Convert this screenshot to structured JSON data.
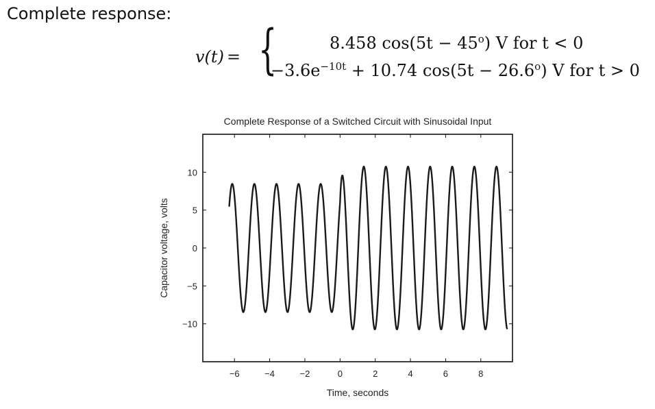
{
  "heading": "Complete response:",
  "equation": {
    "lhs": "v(t)",
    "equals": "=",
    "case1": {
      "expr": "8.458 cos(5t − 45",
      "deg": "o",
      "tail": ") V for t < 0"
    },
    "case2": {
      "coef": "−3.6e",
      "exp": "−10t",
      "expr": " + 10.74 cos(5t − 26.6",
      "deg": "o",
      "tail": ") V for t > 0"
    }
  },
  "chart_data": {
    "type": "line",
    "title": "Complete Response of a Switched Circuit with Sinusoidal Input",
    "xlabel": "Time, seconds",
    "ylabel": "Capacitor voltage, volts",
    "xlim": [
      -7.8,
      9.8
    ],
    "ylim": [
      -15,
      15
    ],
    "xticks": [
      -6,
      -4,
      -2,
      0,
      2,
      4,
      6,
      8
    ],
    "xtick_labels": [
      "−6",
      "−4",
      "−2",
      "0",
      "2",
      "4",
      "6",
      "8"
    ],
    "yticks": [
      -10,
      -5,
      0,
      5,
      10
    ],
    "ytick_labels": [
      "−10",
      "−5",
      "0",
      "5",
      "10"
    ],
    "grid": false,
    "series": [
      {
        "function": "v(t) = 8.458 cos(5t − 45°) for t < 0; −3.6 e^(−10t) + 10.74 cos(5t − 26.6°) for t > 0",
        "x_range": [
          -6.3,
          9.5
        ],
        "x_step": 0.01,
        "color": "#1a1a1a"
      }
    ]
  }
}
